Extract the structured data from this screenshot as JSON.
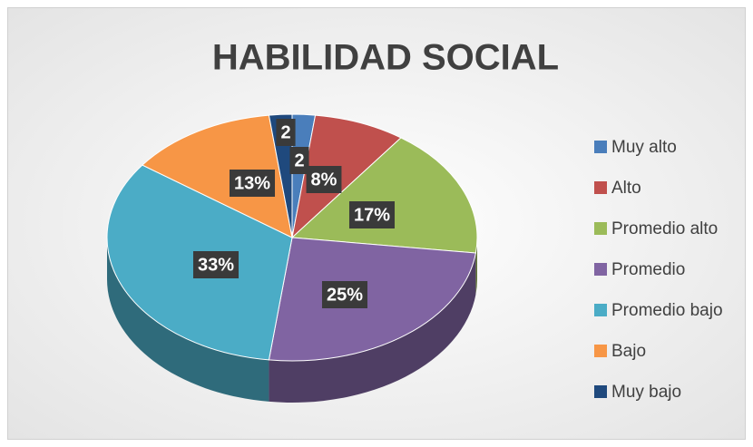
{
  "chart_data": {
    "type": "pie",
    "title": "HABILIDAD SOCIAL",
    "categories": [
      "Muy alto",
      "Alto",
      "Promedio alto",
      "Promedio",
      "Promedio bajo",
      "Bajo",
      "Muy bajo"
    ],
    "values": [
      2,
      8,
      17,
      25,
      33,
      13,
      2
    ],
    "value_labels": [
      "2",
      "8%",
      "17%",
      "25%",
      "33%",
      "13%",
      "2"
    ],
    "colors": [
      "#4a7ebb",
      "#c0504d",
      "#9bbb59",
      "#8064a2",
      "#4bacc6",
      "#f79646",
      "#1f497d"
    ],
    "legend": "right"
  }
}
